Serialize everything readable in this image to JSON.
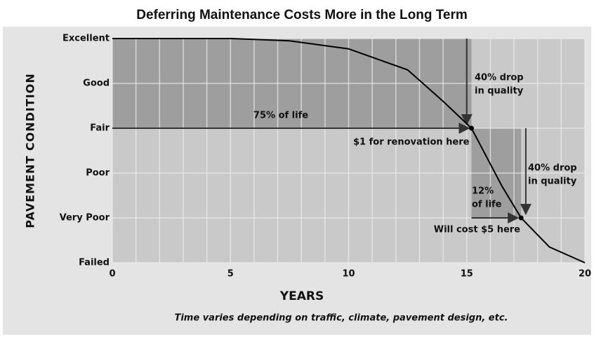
{
  "chart_data": {
    "type": "line",
    "title": "Deferring Maintenance Costs More in the Long Term",
    "subtitle": "Time varies depending on traffic, climate, pavement design, etc.",
    "x_label": "YEARS",
    "y_label": "PAVEMENT CONDITION",
    "x": [
      0,
      5,
      7.5,
      10,
      12.5,
      14,
      15.2,
      16,
      16.5,
      17.3,
      18.5,
      20
    ],
    "values": [
      5,
      5,
      4.95,
      4.77,
      4.3,
      3.6,
      3,
      2.2,
      1.7,
      1,
      0.35,
      0
    ],
    "color": "#000000",
    "xlim": [
      0,
      20
    ],
    "xticks": [
      0,
      5,
      10,
      15,
      20
    ],
    "xminorticks": [
      1,
      2,
      3,
      4,
      6,
      7,
      8,
      9,
      11,
      12,
      13,
      14,
      16,
      17,
      18,
      19
    ],
    "ylim": [
      0,
      5
    ],
    "yticks": [
      {
        "value": 0,
        "label": "Failed"
      },
      {
        "value": 1,
        "label": "Very Poor"
      },
      {
        "value": 2,
        "label": "Poor"
      },
      {
        "value": 3,
        "label": "Fair"
      },
      {
        "value": 4,
        "label": "Good"
      },
      {
        "value": 5,
        "label": "Excellent"
      }
    ],
    "grid": true,
    "annotations": [
      {
        "lines": [
          "75% of life"
        ]
      },
      {
        "lines": [
          "$1 for renovation here"
        ]
      },
      {
        "lines": [
          "40% drop",
          "in quality"
        ]
      },
      {
        "lines": [
          "40% drop",
          "in quality"
        ]
      },
      {
        "lines": [
          "12%",
          "of life"
        ]
      },
      {
        "lines": [
          "Will cost $5 here"
        ]
      }
    ]
  }
}
